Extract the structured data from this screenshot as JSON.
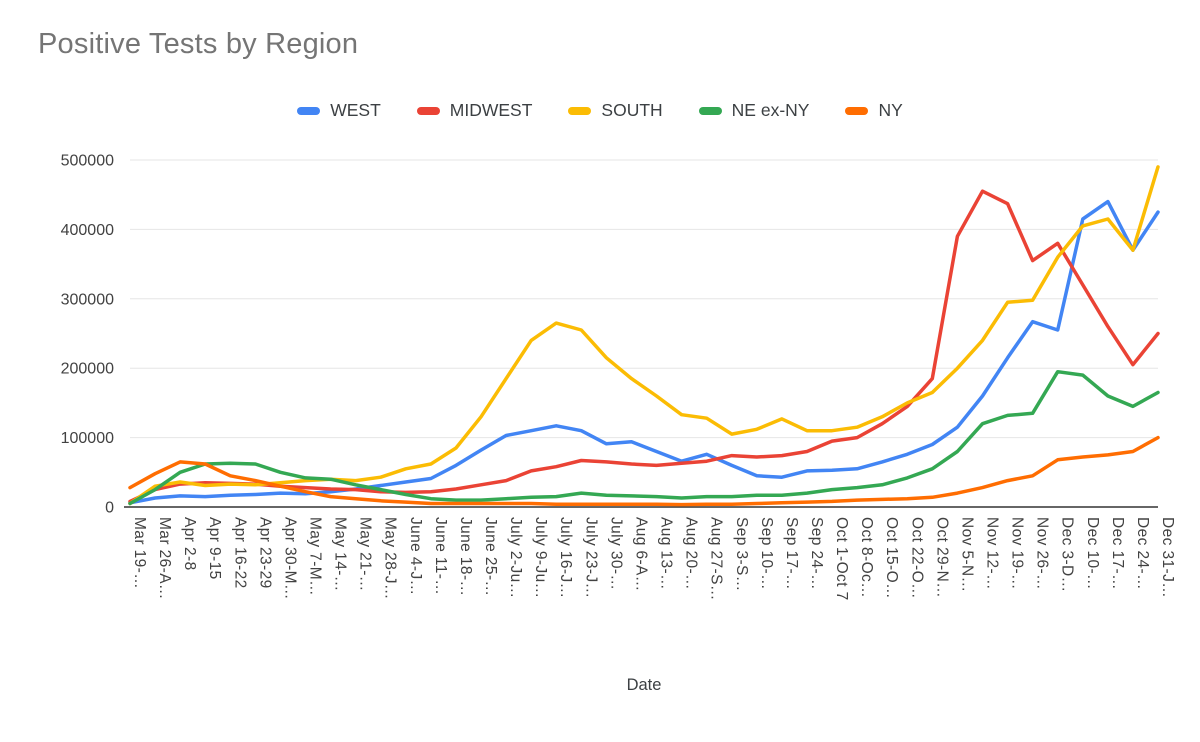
{
  "chart_data": {
    "type": "line",
    "title": "Positive Tests by Region",
    "xlabel": "Date",
    "ylabel": "",
    "ylim": [
      0,
      500000
    ],
    "yticks": [
      0,
      100000,
      200000,
      300000,
      400000,
      500000
    ],
    "grid": true,
    "legend_position": "top",
    "grid_color": "#e6e6e6",
    "axis_color": "#333333",
    "tick_label_color": "#424242",
    "title_color": "#757575",
    "categories": [
      "Mar 19-…",
      "Mar 26-A…",
      "Apr 2-8",
      "Apr 9-15",
      "Apr 16-22",
      "Apr 23-29",
      "Apr 30-M…",
      "May 7-M…",
      "May 14-…",
      "May 21-…",
      "May 28-J…",
      "June 4-J…",
      "June 11-…",
      "June 18-…",
      "June 25-…",
      "July 2-Ju…",
      "July 9-Ju…",
      "July 16-J…",
      "July 23-J…",
      "July 30-…",
      "Aug 6-A…",
      "Aug 13-…",
      "Aug 20-…",
      "Aug 27-S…",
      "Sep 3-S…",
      "Sep 10-…",
      "Sep 17-…",
      "Sep 24-…",
      "Oct 1-Oct 7",
      "Oct 8-Oc…",
      "Oct 15-O…",
      "Oct 22-O…",
      "Oct 29-N…",
      "Nov 5-N…",
      "Nov 12-…",
      "Nov 19-…",
      "Nov 26-…",
      "Dec 3-D…",
      "Dec 10-…",
      "Dec 17-…",
      "Dec 24-…",
      "Dec 31-J…"
    ],
    "series": [
      {
        "name": "WEST",
        "color": "#4285F4",
        "values": [
          6000,
          13000,
          16000,
          15000,
          17000,
          18000,
          20000,
          19000,
          22000,
          26000,
          31000,
          36000,
          41000,
          60000,
          82000,
          103000,
          110000,
          117000,
          110000,
          91000,
          94000,
          80000,
          66000,
          76000,
          60000,
          45000,
          43000,
          52000,
          53000,
          55000,
          65000,
          76000,
          90000,
          115000,
          160000,
          215000,
          267000,
          255000,
          415000,
          440000,
          370000,
          425000
        ]
      },
      {
        "name": "MIDWEST",
        "color": "#EA4335",
        "values": [
          8000,
          25000,
          33000,
          35000,
          34000,
          33000,
          30000,
          28000,
          26000,
          25000,
          22000,
          21000,
          22000,
          26000,
          32000,
          38000,
          52000,
          58000,
          67000,
          65000,
          62000,
          60000,
          63000,
          66000,
          74000,
          72000,
          74000,
          80000,
          95000,
          100000,
          120000,
          145000,
          185000,
          390000,
          455000,
          437000,
          355000,
          380000,
          320000,
          260000,
          205000,
          250000
        ]
      },
      {
        "name": "SOUTH",
        "color": "#FBBC04",
        "values": [
          5000,
          30000,
          36000,
          31000,
          33000,
          32000,
          35000,
          38000,
          40000,
          38000,
          43000,
          55000,
          62000,
          85000,
          130000,
          185000,
          240000,
          265000,
          255000,
          215000,
          185000,
          160000,
          133000,
          128000,
          105000,
          112000,
          127000,
          110000,
          110000,
          115000,
          130000,
          150000,
          165000,
          200000,
          240000,
          295000,
          298000,
          360000,
          405000,
          415000,
          370000,
          490000
        ]
      },
      {
        "name": "NE ex-NY",
        "color": "#34A853",
        "values": [
          5000,
          25000,
          50000,
          62000,
          63000,
          62000,
          50000,
          42000,
          40000,
          32000,
          25000,
          18000,
          12000,
          10000,
          10000,
          12000,
          14000,
          15000,
          20000,
          17000,
          16000,
          15000,
          13000,
          15000,
          15000,
          17000,
          17000,
          20000,
          25000,
          28000,
          32000,
          42000,
          55000,
          80000,
          120000,
          132000,
          135000,
          195000,
          190000,
          160000,
          145000,
          165000
        ]
      },
      {
        "name": "NY",
        "color": "#FF6D01",
        "values": [
          28000,
          48000,
          65000,
          62000,
          45000,
          38000,
          30000,
          22000,
          15000,
          12000,
          9000,
          7000,
          5000,
          5000,
          5000,
          5000,
          5000,
          4000,
          4000,
          4000,
          4000,
          4000,
          3500,
          4000,
          4000,
          5000,
          6000,
          7000,
          8000,
          10000,
          11000,
          12000,
          14000,
          20000,
          28000,
          38000,
          45000,
          68000,
          72000,
          75000,
          80000,
          100000
        ]
      }
    ]
  }
}
